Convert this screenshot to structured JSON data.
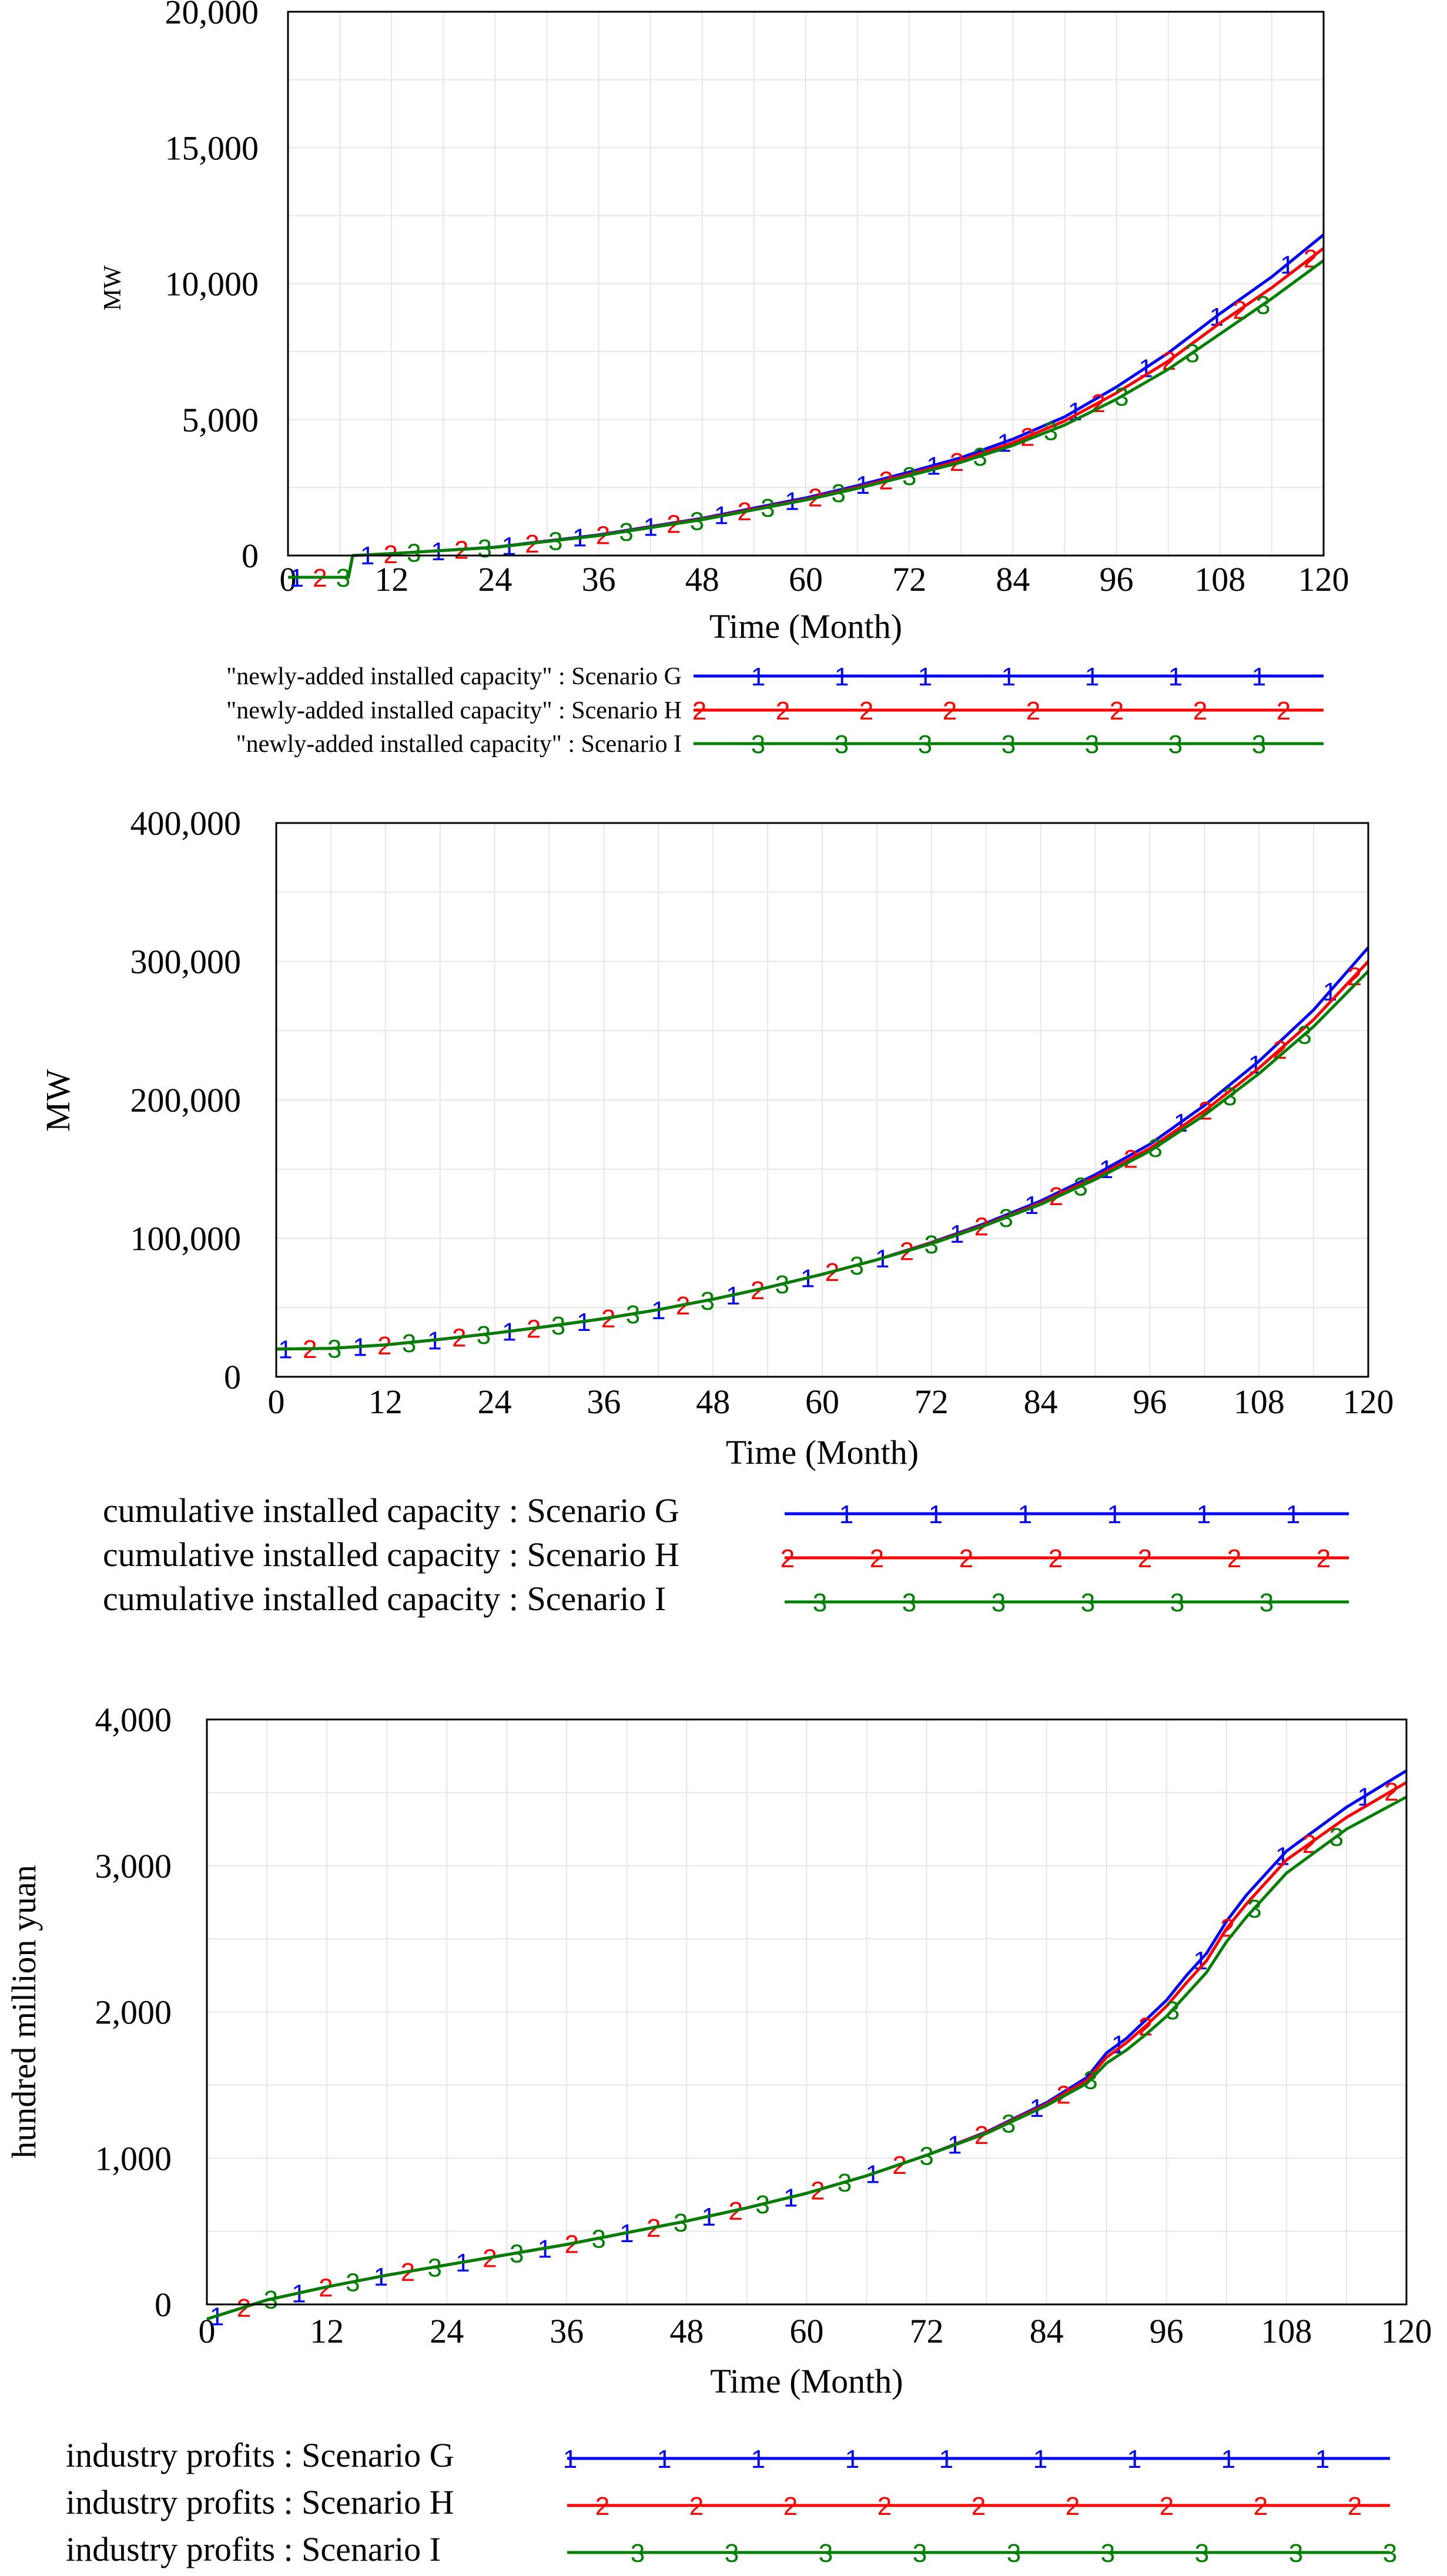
{
  "colors": {
    "series1": "#0000ff",
    "series2": "#ff0000",
    "series3": "#008000",
    "grid": "#e6e6e6"
  },
  "chart_data": [
    {
      "type": "line",
      "xlabel": "Time (Month)",
      "ylabel": "MW",
      "xlim": [
        0,
        120
      ],
      "ylim": [
        0,
        20000
      ],
      "x_ticks": [
        "0",
        "12",
        "24",
        "36",
        "48",
        "60",
        "72",
        "84",
        "96",
        "108",
        "120"
      ],
      "y_ticks": [
        "0",
        "5,000",
        "10,000",
        "15,000",
        "20,000"
      ],
      "series": [
        {
          "name": "\"newly-added installed capacity\" : Scenario G",
          "marker": "1",
          "x": [
            0,
            7,
            7.5,
            12,
            24,
            36,
            48,
            60,
            66,
            72,
            78,
            84,
            90,
            96,
            102,
            108,
            114,
            120
          ],
          "values": [
            -800,
            -800,
            0,
            70,
            310,
            760,
            1370,
            2120,
            2570,
            3070,
            3600,
            4280,
            5100,
            6200,
            7450,
            8900,
            10250,
            11800
          ]
        },
        {
          "name": "\"newly-added installed capacity\" : Scenario H",
          "marker": "2",
          "x": [
            0,
            7,
            7.5,
            12,
            24,
            36,
            48,
            60,
            66,
            72,
            78,
            84,
            90,
            96,
            102,
            108,
            114,
            120
          ],
          "values": [
            -800,
            -800,
            0,
            70,
            300,
            740,
            1340,
            2070,
            2510,
            2990,
            3500,
            4150,
            4950,
            5980,
            7150,
            8550,
            9850,
            11300
          ]
        },
        {
          "name": "\"newly-added installed capacity\" : Scenario I",
          "marker": "3",
          "x": [
            0,
            7,
            7.5,
            12,
            24,
            36,
            48,
            60,
            66,
            72,
            78,
            84,
            90,
            96,
            102,
            108,
            114,
            120
          ],
          "values": [
            -800,
            -800,
            0,
            70,
            300,
            730,
            1320,
            2040,
            2470,
            2940,
            3430,
            4050,
            4800,
            5750,
            6850,
            8150,
            9450,
            10850
          ]
        }
      ]
    },
    {
      "type": "line",
      "xlabel": "Time (Month)",
      "ylabel": "MW",
      "xlim": [
        0,
        120
      ],
      "ylim": [
        0,
        400000
      ],
      "x_ticks": [
        "0",
        "12",
        "24",
        "36",
        "48",
        "60",
        "72",
        "84",
        "96",
        "108",
        "120"
      ],
      "y_ticks": [
        "0",
        "100,000",
        "200,000",
        "300,000",
        "400,000"
      ],
      "series": [
        {
          "name": "cumulative installed capacity : Scenario G",
          "marker": "1",
          "x": [
            0,
            6,
            12,
            18,
            24,
            30,
            36,
            42,
            48,
            54,
            60,
            66,
            72,
            78,
            84,
            90,
            96,
            102,
            108,
            114,
            120
          ],
          "values": [
            20000,
            20500,
            23000,
            27000,
            31500,
            36500,
            42000,
            48500,
            56000,
            64500,
            74000,
            84500,
            97000,
            111000,
            127000,
            146000,
            168000,
            196000,
            228000,
            265000,
            310000
          ]
        },
        {
          "name": "cumulative installed capacity : Scenario H",
          "marker": "2",
          "x": [
            0,
            6,
            12,
            18,
            24,
            30,
            36,
            42,
            48,
            54,
            60,
            66,
            72,
            78,
            84,
            90,
            96,
            102,
            108,
            114,
            120
          ],
          "values": [
            20000,
            20500,
            23000,
            27000,
            31500,
            36500,
            42000,
            48500,
            56000,
            64500,
            74000,
            84500,
            96500,
            110000,
            125500,
            144000,
            165000,
            192000,
            223000,
            258000,
            300000
          ]
        },
        {
          "name": "cumulative installed capacity : Scenario I",
          "marker": "3",
          "x": [
            0,
            6,
            12,
            18,
            24,
            30,
            36,
            42,
            48,
            54,
            60,
            66,
            72,
            78,
            84,
            90,
            96,
            102,
            108,
            114,
            120
          ],
          "values": [
            20000,
            20500,
            23000,
            27000,
            31500,
            36500,
            42000,
            48500,
            56000,
            64500,
            74000,
            84500,
            96000,
            109500,
            124500,
            142500,
            163000,
            189000,
            219000,
            253000,
            293000
          ]
        }
      ]
    },
    {
      "type": "line",
      "xlabel": "Time (Month)",
      "ylabel": "hundred million yuan",
      "xlim": [
        0,
        120
      ],
      "ylim": [
        0,
        4000
      ],
      "x_ticks": [
        "0",
        "12",
        "24",
        "36",
        "48",
        "60",
        "72",
        "84",
        "96",
        "108",
        "120"
      ],
      "y_ticks": [
        "0",
        "1,000",
        "2,000",
        "3,000",
        "4,000"
      ],
      "series": [
        {
          "name": "industry profits : Scenario G",
          "marker": "1",
          "x": [
            0,
            6,
            12,
            18,
            24,
            30,
            36,
            42,
            48,
            54,
            60,
            66,
            72,
            78,
            84,
            88,
            90,
            92,
            94,
            96,
            98,
            100,
            102,
            104,
            108,
            114,
            120
          ],
          "values": [
            -100,
            30,
            120,
            200,
            270,
            340,
            410,
            490,
            570,
            660,
            760,
            880,
            1020,
            1180,
            1380,
            1550,
            1720,
            1820,
            1950,
            2080,
            2250,
            2400,
            2620,
            2800,
            3100,
            3400,
            3650
          ]
        },
        {
          "name": "industry profits : Scenario H",
          "marker": "2",
          "x": [
            0,
            6,
            12,
            18,
            24,
            30,
            36,
            42,
            48,
            54,
            60,
            66,
            72,
            78,
            84,
            88,
            90,
            92,
            94,
            96,
            98,
            100,
            102,
            104,
            108,
            114,
            120
          ],
          "values": [
            -100,
            30,
            120,
            200,
            270,
            340,
            410,
            490,
            570,
            660,
            760,
            880,
            1020,
            1175,
            1370,
            1530,
            1690,
            1790,
            1910,
            2040,
            2200,
            2350,
            2570,
            2740,
            3040,
            3330,
            3570
          ]
        },
        {
          "name": "industry profits : Scenario I",
          "marker": "3",
          "x": [
            0,
            6,
            12,
            18,
            24,
            30,
            36,
            42,
            48,
            54,
            60,
            66,
            72,
            78,
            84,
            88,
            90,
            92,
            94,
            96,
            98,
            100,
            102,
            104,
            108,
            114,
            120
          ],
          "values": [
            -100,
            30,
            120,
            200,
            270,
            340,
            410,
            490,
            570,
            660,
            760,
            880,
            1020,
            1170,
            1360,
            1510,
            1650,
            1740,
            1850,
            1970,
            2120,
            2270,
            2480,
            2650,
            2950,
            3250,
            3470
          ]
        }
      ]
    }
  ]
}
